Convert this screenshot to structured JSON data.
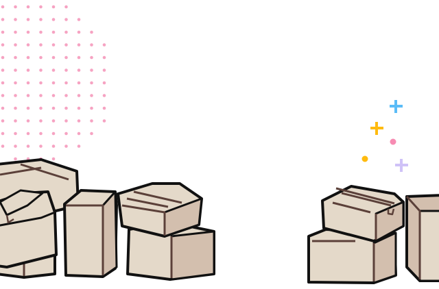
{
  "colors": {
    "background": "#ffffff",
    "dots": "#f6a3c2",
    "box_face": "#e4d9c9",
    "box_side": "#d3bfae",
    "box_line": "#5b4039",
    "box_outline": "#111111",
    "sparkle_blue": "#5bbcf7",
    "sparkle_yellow": "#ffbb0f",
    "sparkle_pink": "#f78cb3",
    "sparkle_purple": "#cfc2f7"
  },
  "icons": [
    "dot-pattern",
    "cardboard-box",
    "sparkle-plus",
    "sparkle-dot"
  ]
}
